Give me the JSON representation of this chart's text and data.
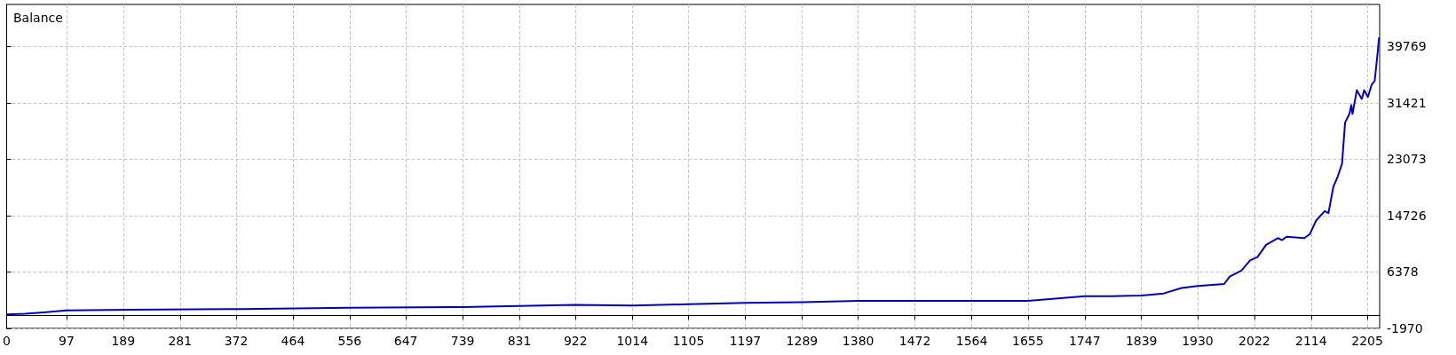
{
  "chart_data": {
    "type": "line",
    "title": "Balance",
    "x": [
      0,
      30,
      60,
      97,
      200,
      372,
      380,
      556,
      739,
      922,
      1014,
      1105,
      1197,
      1289,
      1380,
      1564,
      1655,
      1747,
      1790,
      1839,
      1875,
      1904,
      1930,
      1973,
      1982,
      2001,
      2015,
      2027,
      2041,
      2060,
      2067,
      2074,
      2103,
      2112,
      2122,
      2136,
      2142,
      2150,
      2157,
      2164,
      2169,
      2176,
      2179,
      2181,
      2188,
      2196,
      2200,
      2206,
      2212,
      2217,
      2222,
      2224
    ],
    "series": [
      {
        "color": "#0000c0",
        "values": [
          100,
          200,
          400,
          700,
          800,
          900,
          900,
          1100,
          1200,
          1500,
          1400,
          1600,
          1800,
          1900,
          2100,
          2100,
          2100,
          2800,
          2800,
          2900,
          3200,
          4000,
          4300,
          4600,
          5700,
          6600,
          8100,
          8600,
          10400,
          11400,
          11100,
          11600,
          11400,
          12000,
          14000,
          15400,
          15100,
          19000,
          20500,
          22400,
          28500,
          29800,
          31100,
          29800,
          33300,
          32000,
          33300,
          32300,
          34100,
          34700,
          39100,
          41100
        ]
      }
    ],
    "xlim": [
      0,
      2225
    ],
    "xticks": [
      0,
      97,
      189,
      281,
      372,
      464,
      556,
      647,
      739,
      831,
      922,
      1014,
      1105,
      1197,
      1289,
      1380,
      1472,
      1564,
      1655,
      1747,
      1839,
      1930,
      2022,
      2114,
      2205
    ],
    "ylim": [
      -1970,
      46000
    ],
    "yticks": [
      -1970,
      6378,
      14726,
      23073,
      31421,
      39769
    ],
    "grid": true,
    "marker": "none",
    "line_style": "solid"
  }
}
